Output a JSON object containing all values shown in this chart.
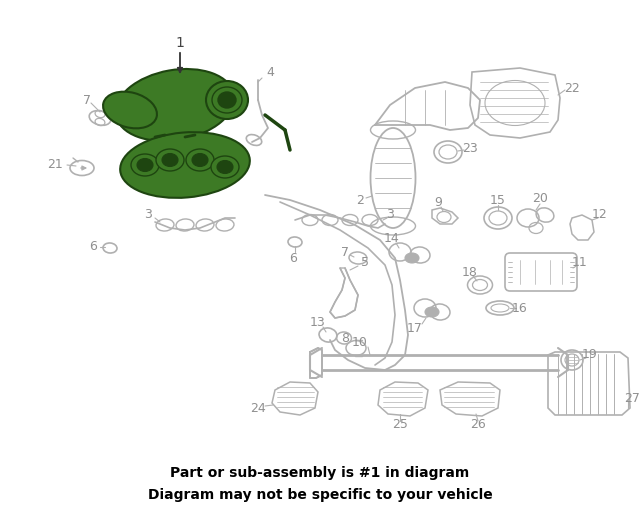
{
  "bg_color": "#ffffff",
  "banner_color": "#2a6118",
  "banner_text_line1": "Part or sub-assembly is #1 in diagram",
  "banner_text_line2": "Diagram may not be specific to your vehicle",
  "banner_text_color": "#000000",
  "lc": "#b0b0b0",
  "hc": "#3d7a25",
  "hc_dark": "#1e4510",
  "lc_dark": "#909090",
  "label_fs": 9,
  "label_color": "#909090"
}
